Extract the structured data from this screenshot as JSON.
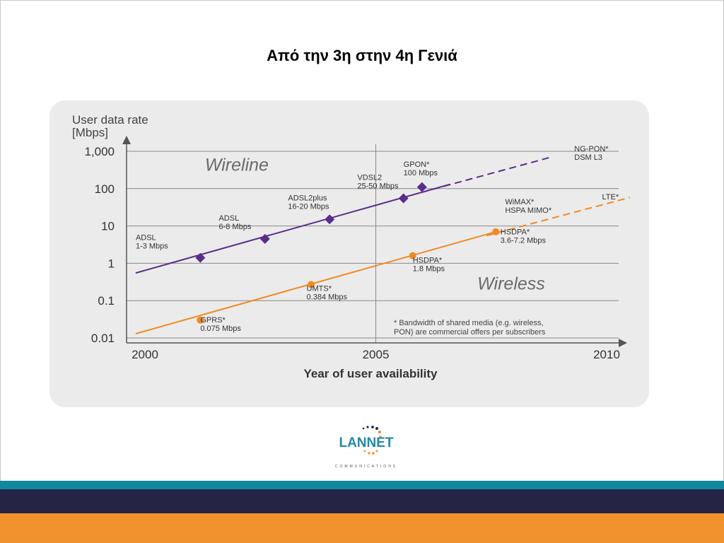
{
  "slide": {
    "title": "Από την 3η στην 4η Γενιά"
  },
  "logo": {
    "name": "LANNET",
    "tagline": "COMMUNICATIONS"
  },
  "footer": {
    "colors": {
      "teal": "#11889d",
      "navy": "#262445",
      "orange": "#f0922e"
    }
  },
  "chart_data": {
    "type": "line",
    "scale": "log",
    "ylabel_line1": "User data rate",
    "ylabel_line2": "[Mbps]",
    "xlabel": "Year of user availability",
    "xlim": [
      2000,
      2010.5
    ],
    "ylim": [
      0.01,
      1000
    ],
    "x_ticks": [
      {
        "value": 2000,
        "label": "2000"
      },
      {
        "value": 2005,
        "label": "2005"
      },
      {
        "value": 2010,
        "label": "2010"
      }
    ],
    "y_ticks": [
      {
        "value": 0.01,
        "label": "0.01"
      },
      {
        "value": 0.1,
        "label": "0.1"
      },
      {
        "value": 1,
        "label": "1"
      },
      {
        "value": 10,
        "label": "10"
      },
      {
        "value": 100,
        "label": "100"
      },
      {
        "value": 1000,
        "label": "1,000"
      }
    ],
    "vline_year": 2005,
    "regions": [
      {
        "label": "Wireline",
        "x": 2001.3,
        "y": 300
      },
      {
        "label": "Wireless",
        "x": 2007.2,
        "y": 0.2
      }
    ],
    "series": [
      {
        "name": "Wireline",
        "color": "#5a2d8c",
        "marker": "diamond",
        "solid": {
          "x": [
            1999.8,
            2006.6
          ],
          "y": [
            0.55,
            130
          ]
        },
        "dashed": {
          "x": [
            2006.0,
            2008.8
          ],
          "y": [
            80,
            700
          ]
        },
        "points": [
          {
            "x": 2001.2,
            "y": 1.4,
            "label1": "ADSL",
            "label2": "1-3 Mbps",
            "lx": 1999.8,
            "ly": 4.2
          },
          {
            "x": 2002.6,
            "y": 4.5,
            "label1": "ADSL",
            "label2": "6-8 Mbps",
            "lx": 2001.6,
            "ly": 14
          },
          {
            "x": 2004.0,
            "y": 15.0,
            "label1": "ADSL2plus",
            "label2": "16-20 Mbps",
            "lx": 2003.1,
            "ly": 48
          },
          {
            "x": 2005.6,
            "y": 55,
            "label1": "VDSL2",
            "label2": "25-50 Mbps",
            "lx": 2004.6,
            "ly": 170
          },
          {
            "x": 2006.0,
            "y": 110,
            "label1": "GPON*",
            "label2": "100 Mbps",
            "lx": 2005.6,
            "ly": 380
          },
          {
            "x": null,
            "y": null,
            "label1": "NG-PON*",
            "label2": "DSM L3",
            "lx": 2009.3,
            "ly": 1000
          }
        ]
      },
      {
        "name": "Wireless",
        "color": "#f08a24",
        "marker": "circle",
        "solid": {
          "x": [
            1999.8,
            2007.6
          ],
          "y": [
            0.013,
            7
          ]
        },
        "dashed": {
          "x": [
            2007.4,
            2010.5
          ],
          "y": [
            5.5,
            58
          ]
        },
        "points": [
          {
            "x": 2001.2,
            "y": 0.03,
            "label1": "GPRS*",
            "label2": "0.075 Mbps",
            "lx": 2001.2,
            "ly": 0.026
          },
          {
            "x": 2003.6,
            "y": 0.27,
            "label1": "UMTS*",
            "label2": "0.384 Mbps",
            "lx": 2003.5,
            "ly": 0.18
          },
          {
            "x": 2005.8,
            "y": 1.6,
            "label1": "HSDPA*",
            "label2": "1.8 Mbps",
            "lx": 2005.8,
            "ly": 1.05
          },
          {
            "x": 2007.6,
            "y": 7,
            "label1": "HSDPA*",
            "label2": "3.6-7.2 Mbps",
            "lx": 2007.7,
            "ly": 6.0
          },
          {
            "x": null,
            "y": null,
            "label1": "WiMAX*",
            "label2": "HSPA MIMO*",
            "lx": 2007.8,
            "ly": 38
          },
          {
            "x": null,
            "y": null,
            "label1": "LTE*",
            "label2": "",
            "lx": 2009.9,
            "ly": 52
          }
        ]
      }
    ],
    "footnote_line1": "* Bandwidth of shared media (e.g. wireless,",
    "footnote_line2": "PON) are commercial offers per subscribers"
  }
}
